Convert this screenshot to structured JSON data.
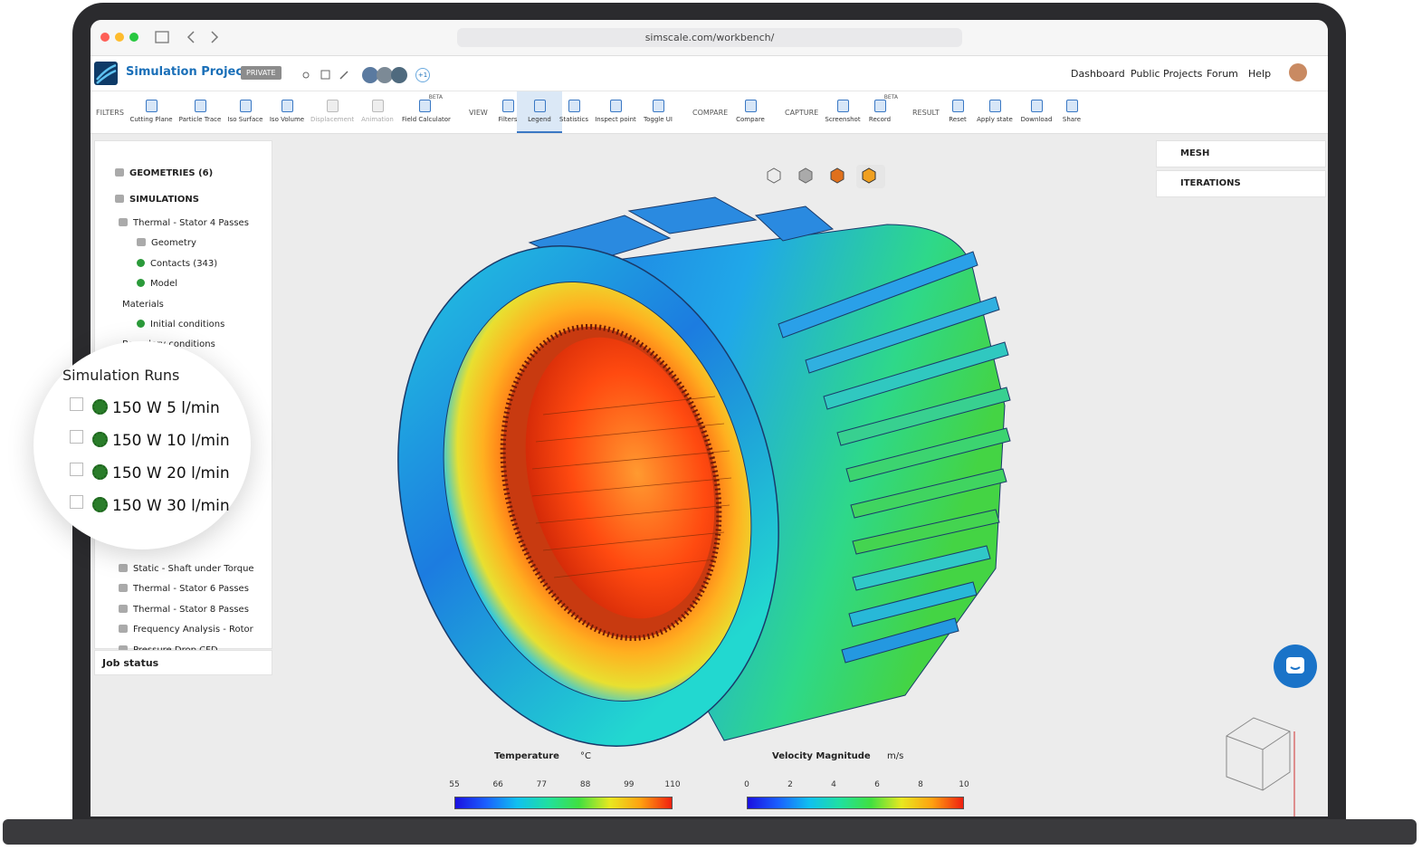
{
  "browser": {
    "url": "simscale.com/workbench/"
  },
  "header": {
    "title": "Simulation Project",
    "badge": "PRIVATE",
    "collaborators_extra": "+1",
    "nav": [
      "Dashboard",
      "Public Projects",
      "Forum",
      "Help"
    ]
  },
  "toolbar": {
    "groups": [
      {
        "label": "FILTERS",
        "tools": [
          {
            "label": "Cutting Plane"
          },
          {
            "label": "Particle Trace"
          },
          {
            "label": "Iso Surface"
          },
          {
            "label": "Iso Volume"
          },
          {
            "label": "Displacement"
          },
          {
            "label": "Animation"
          },
          {
            "label": "Field Calculator",
            "badge": "BETA"
          }
        ]
      },
      {
        "label": "VIEW",
        "tools": [
          {
            "label": "Filters"
          },
          {
            "label": "Legend"
          },
          {
            "label": "Statistics"
          },
          {
            "label": "Inspect point"
          },
          {
            "label": "Toggle UI"
          }
        ]
      },
      {
        "label": "COMPARE",
        "tools": [
          {
            "label": "Compare"
          }
        ]
      },
      {
        "label": "CAPTURE",
        "tools": [
          {
            "label": "Screenshot"
          },
          {
            "label": "Record",
            "badge": "BETA"
          }
        ]
      },
      {
        "label": "RESULT",
        "tools": [
          {
            "label": "Reset"
          },
          {
            "label": "Apply state"
          },
          {
            "label": "Download"
          },
          {
            "label": "Share"
          }
        ]
      }
    ]
  },
  "tree": {
    "geometries": "GEOMETRIES (6)",
    "simulations": "SIMULATIONS",
    "upper_items": [
      "Thermal - Stator 4 Passes",
      "Geometry",
      "Contacts (343)",
      "Model",
      "Materials",
      "Initial conditions",
      "Boundary conditions"
    ],
    "lower_items": [
      "Static - Shaft under Torque",
      "Thermal - Stator 6 Passes",
      "Thermal - Stator 8 Passes",
      "Frequency Analysis - Rotor",
      "Pressure Drop CFD"
    ]
  },
  "job_status": "Job status",
  "zoom": {
    "title": "Simulation Runs",
    "runs": [
      "150 W 5 l/min",
      "150 W 10 l/min",
      "150 W 20 l/min",
      "150 W 30 l/min"
    ]
  },
  "right_panel": [
    "MESH",
    "ITERATIONS"
  ],
  "legends": [
    {
      "label": "Temperature",
      "unit": "°C",
      "ticks": [
        55,
        66,
        77,
        88,
        99,
        110
      ]
    },
    {
      "label": "Velocity Magnitude",
      "unit": "m/s",
      "ticks": [
        0,
        2,
        4,
        6,
        8,
        10
      ]
    }
  ]
}
